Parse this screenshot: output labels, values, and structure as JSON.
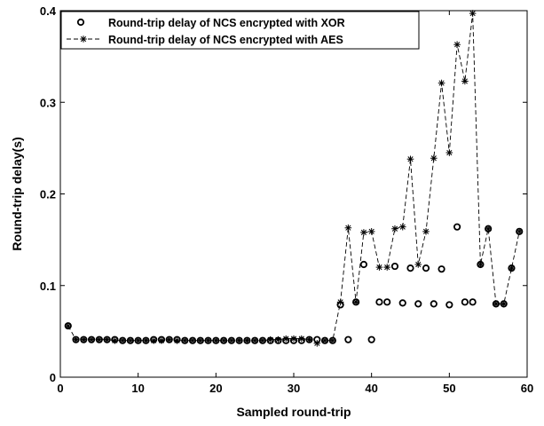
{
  "chart_data": {
    "type": "scatter",
    "xlabel": "Sampled round-trip",
    "ylabel": "Round-trip delay(s)",
    "xlim": [
      0,
      60
    ],
    "ylim": [
      0,
      0.4
    ],
    "x_ticks": [
      0,
      10,
      20,
      30,
      40,
      50,
      60
    ],
    "y_ticks": [
      0,
      0.1,
      0.2,
      0.3,
      0.4
    ],
    "x_tick_labels": [
      "0",
      "10",
      "20",
      "30",
      "40",
      "50",
      "60"
    ],
    "y_tick_labels": [
      "0",
      "0.1",
      "0.2",
      "0.3",
      "0.4"
    ],
    "grid": false,
    "legend_position": "top-left",
    "series": [
      {
        "name": "Round-trip delay of NCS encrypted with XOR",
        "marker": "circle",
        "line": "none",
        "color": "#000000",
        "points": [
          [
            1,
            0.056
          ],
          [
            2,
            0.041
          ],
          [
            3,
            0.041
          ],
          [
            4,
            0.041
          ],
          [
            5,
            0.041
          ],
          [
            6,
            0.041
          ],
          [
            7,
            0.041
          ],
          [
            8,
            0.04
          ],
          [
            9,
            0.04
          ],
          [
            10,
            0.04
          ],
          [
            11,
            0.04
          ],
          [
            12,
            0.041
          ],
          [
            13,
            0.041
          ],
          [
            14,
            0.041
          ],
          [
            15,
            0.041
          ],
          [
            16,
            0.04
          ],
          [
            17,
            0.04
          ],
          [
            18,
            0.04
          ],
          [
            19,
            0.04
          ],
          [
            20,
            0.04
          ],
          [
            21,
            0.04
          ],
          [
            22,
            0.04
          ],
          [
            23,
            0.04
          ],
          [
            24,
            0.04
          ],
          [
            25,
            0.04
          ],
          [
            26,
            0.04
          ],
          [
            27,
            0.04
          ],
          [
            28,
            0.04
          ],
          [
            29,
            0.04
          ],
          [
            30,
            0.04
          ],
          [
            31,
            0.04
          ],
          [
            32,
            0.041
          ],
          [
            33,
            0.041
          ],
          [
            34,
            0.04
          ],
          [
            35,
            0.04
          ],
          [
            36,
            0.079
          ],
          [
            37,
            0.041
          ],
          [
            38,
            0.082
          ],
          [
            39,
            0.123
          ],
          [
            40,
            0.041
          ],
          [
            41,
            0.082
          ],
          [
            42,
            0.082
          ],
          [
            43,
            0.121
          ],
          [
            44,
            0.081
          ],
          [
            45,
            0.119
          ],
          [
            46,
            0.08
          ],
          [
            47,
            0.119
          ],
          [
            48,
            0.08
          ],
          [
            49,
            0.118
          ],
          [
            50,
            0.079
          ],
          [
            51,
            0.164
          ],
          [
            52,
            0.082
          ],
          [
            53,
            0.082
          ],
          [
            54,
            0.123
          ],
          [
            55,
            0.162
          ],
          [
            56,
            0.08
          ],
          [
            57,
            0.08
          ],
          [
            58,
            0.119
          ],
          [
            59,
            0.159
          ]
        ]
      },
      {
        "name": "Round-trip delay of NCS encrypted with AES",
        "marker": "star",
        "line": "dashed",
        "color": "#000000",
        "points": [
          [
            1,
            0.056
          ],
          [
            2,
            0.041
          ],
          [
            3,
            0.041
          ],
          [
            4,
            0.041
          ],
          [
            5,
            0.041
          ],
          [
            6,
            0.041
          ],
          [
            7,
            0.04
          ],
          [
            8,
            0.04
          ],
          [
            9,
            0.04
          ],
          [
            10,
            0.04
          ],
          [
            11,
            0.04
          ],
          [
            12,
            0.04
          ],
          [
            13,
            0.04
          ],
          [
            14,
            0.041
          ],
          [
            15,
            0.04
          ],
          [
            16,
            0.04
          ],
          [
            17,
            0.04
          ],
          [
            18,
            0.04
          ],
          [
            19,
            0.04
          ],
          [
            20,
            0.04
          ],
          [
            21,
            0.04
          ],
          [
            22,
            0.04
          ],
          [
            23,
            0.04
          ],
          [
            24,
            0.04
          ],
          [
            25,
            0.04
          ],
          [
            26,
            0.04
          ],
          [
            27,
            0.041
          ],
          [
            28,
            0.041
          ],
          [
            29,
            0.042
          ],
          [
            30,
            0.042
          ],
          [
            31,
            0.042
          ],
          [
            32,
            0.041
          ],
          [
            33,
            0.037
          ],
          [
            34,
            0.04
          ],
          [
            35,
            0.04
          ],
          [
            36,
            0.082
          ],
          [
            37,
            0.163
          ],
          [
            38,
            0.082
          ],
          [
            39,
            0.158
          ],
          [
            40,
            0.159
          ],
          [
            41,
            0.12
          ],
          [
            42,
            0.12
          ],
          [
            43,
            0.162
          ],
          [
            44,
            0.164
          ],
          [
            45,
            0.238
          ],
          [
            46,
            0.123
          ],
          [
            47,
            0.159
          ],
          [
            48,
            0.239
          ],
          [
            49,
            0.321
          ],
          [
            50,
            0.245
          ],
          [
            51,
            0.363
          ],
          [
            52,
            0.323
          ],
          [
            53,
            0.397
          ],
          [
            54,
            0.123
          ],
          [
            55,
            0.162
          ],
          [
            56,
            0.08
          ],
          [
            57,
            0.08
          ],
          [
            58,
            0.119
          ],
          [
            59,
            0.159
          ]
        ]
      }
    ]
  }
}
